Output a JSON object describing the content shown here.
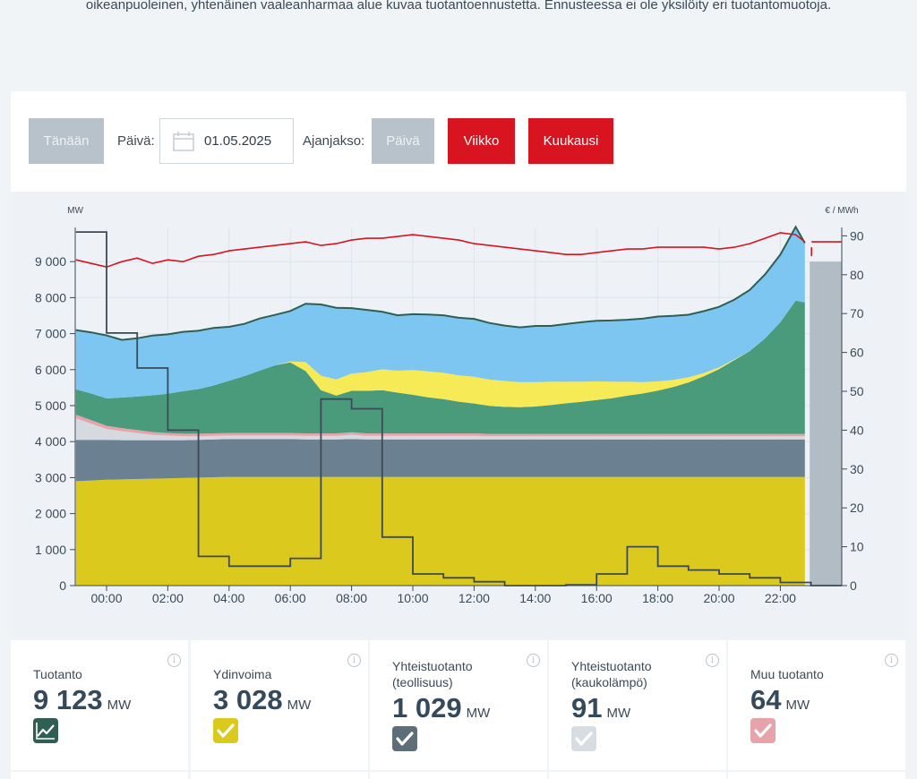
{
  "intro_text": "oikeanpuoleinen, yhtenäinen vaaleanharmaa alue kuvaa tuotantoennustetta. Ennusteessa ei ole yksilöity eri tuotantomuotoja.",
  "toolbar": {
    "today_label": "Tänään",
    "date_label": "Päivä:",
    "date_value": "01.05.2025",
    "period_label": "Ajanjakso:",
    "period_day": "Päivä",
    "period_week": "Viikko",
    "period_month": "Kuukausi"
  },
  "chart_data": {
    "type": "area",
    "left_unit": "MW",
    "right_unit": "€ / MWh",
    "left_ticks": [
      "0",
      "1 000",
      "2 000",
      "3 000",
      "4 000",
      "5 000",
      "6 000",
      "7 000",
      "8 000",
      "9 000"
    ],
    "right_ticks": [
      "0",
      "10",
      "20",
      "30",
      "40",
      "50",
      "60",
      "70",
      "80",
      "90"
    ],
    "x_ticks": [
      "00:00",
      "02:00",
      "04:00",
      "06:00",
      "08:00",
      "10:00",
      "12:00",
      "14:00",
      "16:00",
      "18:00",
      "20:00",
      "22:00"
    ],
    "ylim_left": [
      0,
      10000
    ],
    "ylim_right": [
      0,
      92
    ],
    "colors": {
      "nuclear": "#dcc91e",
      "chp_industry": "#6b8090",
      "chp_district": "#d4dae0",
      "other": "#e6a3aa",
      "wind": "#4a9a7c",
      "solar": "#f7ea57",
      "hydro": "#7ec6f2",
      "total_line": "#2f5f52",
      "consumption_line": "#d7141f",
      "price_line": "#3b4a57",
      "forecast": "#b1bcc4"
    },
    "hours": [
      -1,
      -0.5,
      0,
      0.5,
      1,
      1.5,
      2,
      2.5,
      3,
      3.5,
      4,
      4.5,
      5,
      5.5,
      6,
      6.5,
      7,
      7.5,
      8,
      8.5,
      9,
      9.5,
      10,
      10.5,
      11,
      11.5,
      12,
      12.5,
      13,
      13.5,
      14,
      14.5,
      15,
      15.5,
      16,
      16.5,
      17,
      17.5,
      18,
      18.5,
      19,
      19.5,
      20,
      20.5,
      21,
      21.5,
      22,
      22.5,
      22.8
    ],
    "nuclear": [
      2900,
      2920,
      2940,
      2950,
      2960,
      2970,
      2980,
      2990,
      3000,
      3010,
      3020,
      3020,
      3020,
      3020,
      3020,
      3020,
      3020,
      3020,
      3020,
      3020,
      3020,
      3020,
      3020,
      3020,
      3020,
      3020,
      3020,
      3020,
      3020,
      3020,
      3020,
      3020,
      3020,
      3020,
      3020,
      3020,
      3020,
      3020,
      3020,
      3020,
      3020,
      3020,
      3020,
      3020,
      3020,
      3020,
      3020,
      3020,
      3020
    ],
    "chp_industry": [
      1150,
      1130,
      1110,
      1090,
      1080,
      1070,
      1060,
      1050,
      1050,
      1050,
      1050,
      1050,
      1050,
      1050,
      1050,
      1040,
      1040,
      1040,
      1050,
      1040,
      1040,
      1040,
      1040,
      1040,
      1040,
      1040,
      1040,
      1040,
      1040,
      1040,
      1040,
      1040,
      1040,
      1040,
      1040,
      1040,
      1040,
      1040,
      1040,
      1040,
      1040,
      1040,
      1040,
      1040,
      1040,
      1040,
      1040,
      1040,
      1040
    ],
    "chp_district": [
      600,
      450,
      300,
      250,
      200,
      150,
      130,
      110,
      100,
      100,
      100,
      100,
      100,
      100,
      100,
      100,
      100,
      100,
      120,
      100,
      100,
      100,
      100,
      100,
      100,
      100,
      100,
      90,
      90,
      90,
      90,
      90,
      90,
      90,
      90,
      90,
      90,
      90,
      90,
      90,
      90,
      90,
      90,
      90,
      90,
      90,
      90,
      90,
      90
    ],
    "other": [
      100,
      95,
      90,
      85,
      80,
      75,
      70,
      70,
      70,
      70,
      70,
      70,
      70,
      70,
      70,
      70,
      70,
      70,
      70,
      70,
      70,
      70,
      70,
      70,
      70,
      70,
      70,
      65,
      65,
      65,
      65,
      65,
      65,
      65,
      65,
      65,
      65,
      65,
      65,
      65,
      65,
      65,
      65,
      65,
      65,
      65,
      65,
      65,
      65
    ],
    "wind": [
      700,
      740,
      760,
      850,
      930,
      1020,
      1090,
      1180,
      1240,
      1330,
      1450,
      1580,
      1730,
      1880,
      1960,
      1730,
      1200,
      1050,
      1150,
      1180,
      1200,
      1130,
      1070,
      1000,
      950,
      880,
      830,
      780,
      750,
      740,
      760,
      800,
      850,
      890,
      940,
      990,
      1060,
      1120,
      1200,
      1300,
      1430,
      1600,
      1800,
      2050,
      2300,
      2650,
      3100,
      3700,
      3650
    ],
    "solar": [
      0,
      0,
      0,
      0,
      0,
      0,
      0,
      0,
      0,
      0,
      0,
      0,
      0,
      0,
      30,
      250,
      400,
      450,
      480,
      520,
      580,
      610,
      690,
      720,
      730,
      730,
      740,
      730,
      720,
      700,
      680,
      650,
      600,
      560,
      520,
      460,
      390,
      320,
      260,
      200,
      140,
      90,
      50,
      20,
      0,
      0,
      0,
      0,
      0
    ],
    "hydro": [
      1650,
      1700,
      1750,
      1600,
      1620,
      1660,
      1650,
      1650,
      1620,
      1600,
      1500,
      1450,
      1450,
      1400,
      1400,
      1620,
      1980,
      1990,
      1820,
      1730,
      1600,
      1540,
      1550,
      1580,
      1600,
      1600,
      1610,
      1570,
      1540,
      1520,
      1560,
      1550,
      1600,
      1650,
      1680,
      1700,
      1720,
      1760,
      1800,
      1780,
      1740,
      1720,
      1680,
      1660,
      1700,
      1780,
      1880,
      2050,
      1650
    ],
    "consumption": [
      9050,
      8950,
      8850,
      9000,
      9100,
      8950,
      9050,
      9000,
      9150,
      9200,
      9300,
      9350,
      9400,
      9450,
      9500,
      9550,
      9450,
      9500,
      9600,
      9650,
      9650,
      9700,
      9750,
      9700,
      9650,
      9600,
      9500,
      9450,
      9400,
      9350,
      9300,
      9250,
      9200,
      9200,
      9250,
      9300,
      9350,
      9350,
      9400,
      9400,
      9400,
      9400,
      9350,
      9400,
      9500,
      9650,
      9800,
      9750,
      9550
    ],
    "forecast_value": 9000,
    "forecast_start_hour": 22.9,
    "price_steps": [
      [
        -1,
        91
      ],
      [
        0,
        91
      ],
      [
        0,
        65
      ],
      [
        1,
        65
      ],
      [
        1,
        56
      ],
      [
        2,
        56
      ],
      [
        2,
        40
      ],
      [
        3,
        40
      ],
      [
        3,
        7.5
      ],
      [
        4,
        7.5
      ],
      [
        4,
        5
      ],
      [
        6,
        5
      ],
      [
        6,
        7
      ],
      [
        7,
        7
      ],
      [
        7,
        48
      ],
      [
        8,
        48
      ],
      [
        8,
        45.5
      ],
      [
        9,
        45.5
      ],
      [
        9,
        12.5
      ],
      [
        10,
        12.5
      ],
      [
        10,
        3
      ],
      [
        11,
        3
      ],
      [
        11,
        2
      ],
      [
        12,
        2
      ],
      [
        12,
        1
      ],
      [
        13,
        1
      ],
      [
        13,
        0
      ],
      [
        15,
        0
      ],
      [
        15,
        0.2
      ],
      [
        16,
        0.2
      ],
      [
        16,
        3
      ],
      [
        17,
        3
      ],
      [
        17,
        10
      ],
      [
        18,
        10
      ],
      [
        18,
        5
      ],
      [
        19,
        5
      ],
      [
        19,
        4
      ],
      [
        20,
        4
      ],
      [
        20,
        3
      ],
      [
        21,
        3
      ],
      [
        21,
        2
      ],
      [
        22,
        2
      ],
      [
        22,
        0.8
      ],
      [
        23,
        0.8
      ],
      [
        23,
        0
      ],
      [
        24,
        0
      ]
    ]
  },
  "cards": [
    {
      "title": "Tuotanto",
      "value": "9 123",
      "unit": "MW",
      "icon": "chart-line-icon",
      "color": "#2f5f52"
    },
    {
      "title": "Ydinvoima",
      "value": "3 028",
      "unit": "MW",
      "icon": "check-icon",
      "color": "#dcc91e"
    },
    {
      "title": "Yhteistuotanto (teollisuus)",
      "value": "1 029",
      "unit": "MW",
      "icon": "check-icon",
      "color": "#5e6e79"
    },
    {
      "title": "Yhteistuotanto (kaukolämpö)",
      "value": "91",
      "unit": "MW",
      "icon": "check-icon",
      "color": "#d7dde2"
    },
    {
      "title": "Muu tuotanto",
      "value": "64",
      "unit": "MW",
      "icon": "check-icon",
      "color": "#e6a3aa"
    }
  ],
  "info_glyph": "i"
}
